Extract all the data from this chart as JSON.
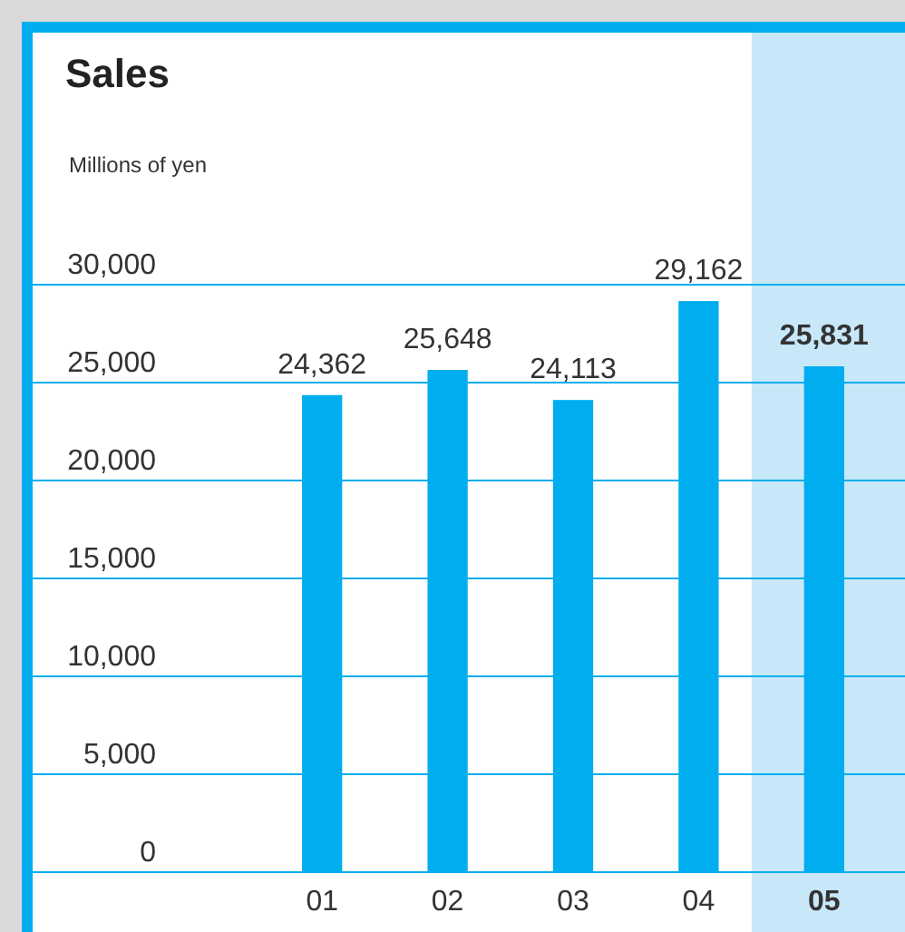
{
  "chart_data": {
    "type": "bar",
    "title": "Sales",
    "subtitle": "Millions of yen",
    "categories": [
      "01",
      "02",
      "03",
      "04",
      "05"
    ],
    "values": [
      24362,
      25648,
      24113,
      29162,
      25831
    ],
    "color": "#00aeef",
    "ylim": [
      0,
      30000
    ],
    "yticks": [
      {
        "value": 0,
        "label": "0"
      },
      {
        "value": 5000,
        "label": "5,000"
      },
      {
        "value": 10000,
        "label": "10,000"
      },
      {
        "value": 15000,
        "label": "15,000"
      },
      {
        "value": 20000,
        "label": "20,000"
      },
      {
        "value": 25000,
        "label": "25,000"
      },
      {
        "value": 30000,
        "label": "30,000"
      }
    ],
    "value_labels": [
      "24,362",
      "25,648",
      "24,113",
      "29,162",
      "25,831"
    ],
    "grid": "y",
    "bands": [
      {
        "axis": "x",
        "from": "05",
        "to": "05",
        "color": "#c8e8f9"
      }
    ]
  }
}
